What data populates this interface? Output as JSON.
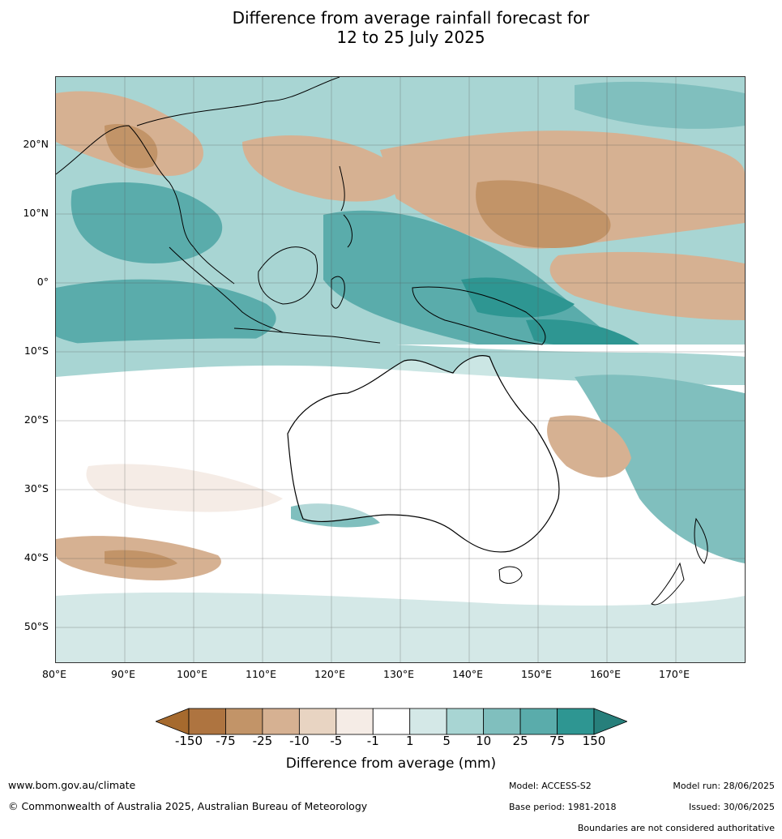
{
  "title": {
    "line1": "Difference from average rainfall forecast for",
    "line2": "12 to 25 July 2025"
  },
  "map": {
    "lat_ticks": [
      "20°N",
      "10°N",
      "0°",
      "10°S",
      "20°S",
      "30°S",
      "40°S",
      "50°S"
    ],
    "lon_ticks": [
      "80°E",
      "90°E",
      "100°E",
      "110°E",
      "120°E",
      "130°E",
      "140°E",
      "150°E",
      "160°E",
      "170°E"
    ]
  },
  "colorbar": {
    "title": "Difference from average (mm)",
    "labels": [
      "-150",
      "-75",
      "-25",
      "-10",
      "-5",
      "-1",
      "1",
      "5",
      "10",
      "25",
      "75",
      "150"
    ],
    "colors": [
      "#a66a2e",
      "#ae7440",
      "#c29468",
      "#d6b192",
      "#e8d4c2",
      "#f5ece6",
      "#ffffff",
      "#d4e8e7",
      "#a8d5d3",
      "#80bfbe",
      "#5aacab",
      "#2e9692",
      "#277f7b"
    ]
  },
  "footer": {
    "website": "www.bom.gov.au/climate",
    "copyright": "© Commonwealth of Australia 2025, Australian Bureau of Meteorology",
    "model": "Model: ACCESS-S2",
    "base_period": "Base period: 1981-2018",
    "model_run": "Model run: 28/06/2025",
    "issued": "Issued: 30/06/2025",
    "disclaimer": "Boundaries are not considered authoritative"
  }
}
